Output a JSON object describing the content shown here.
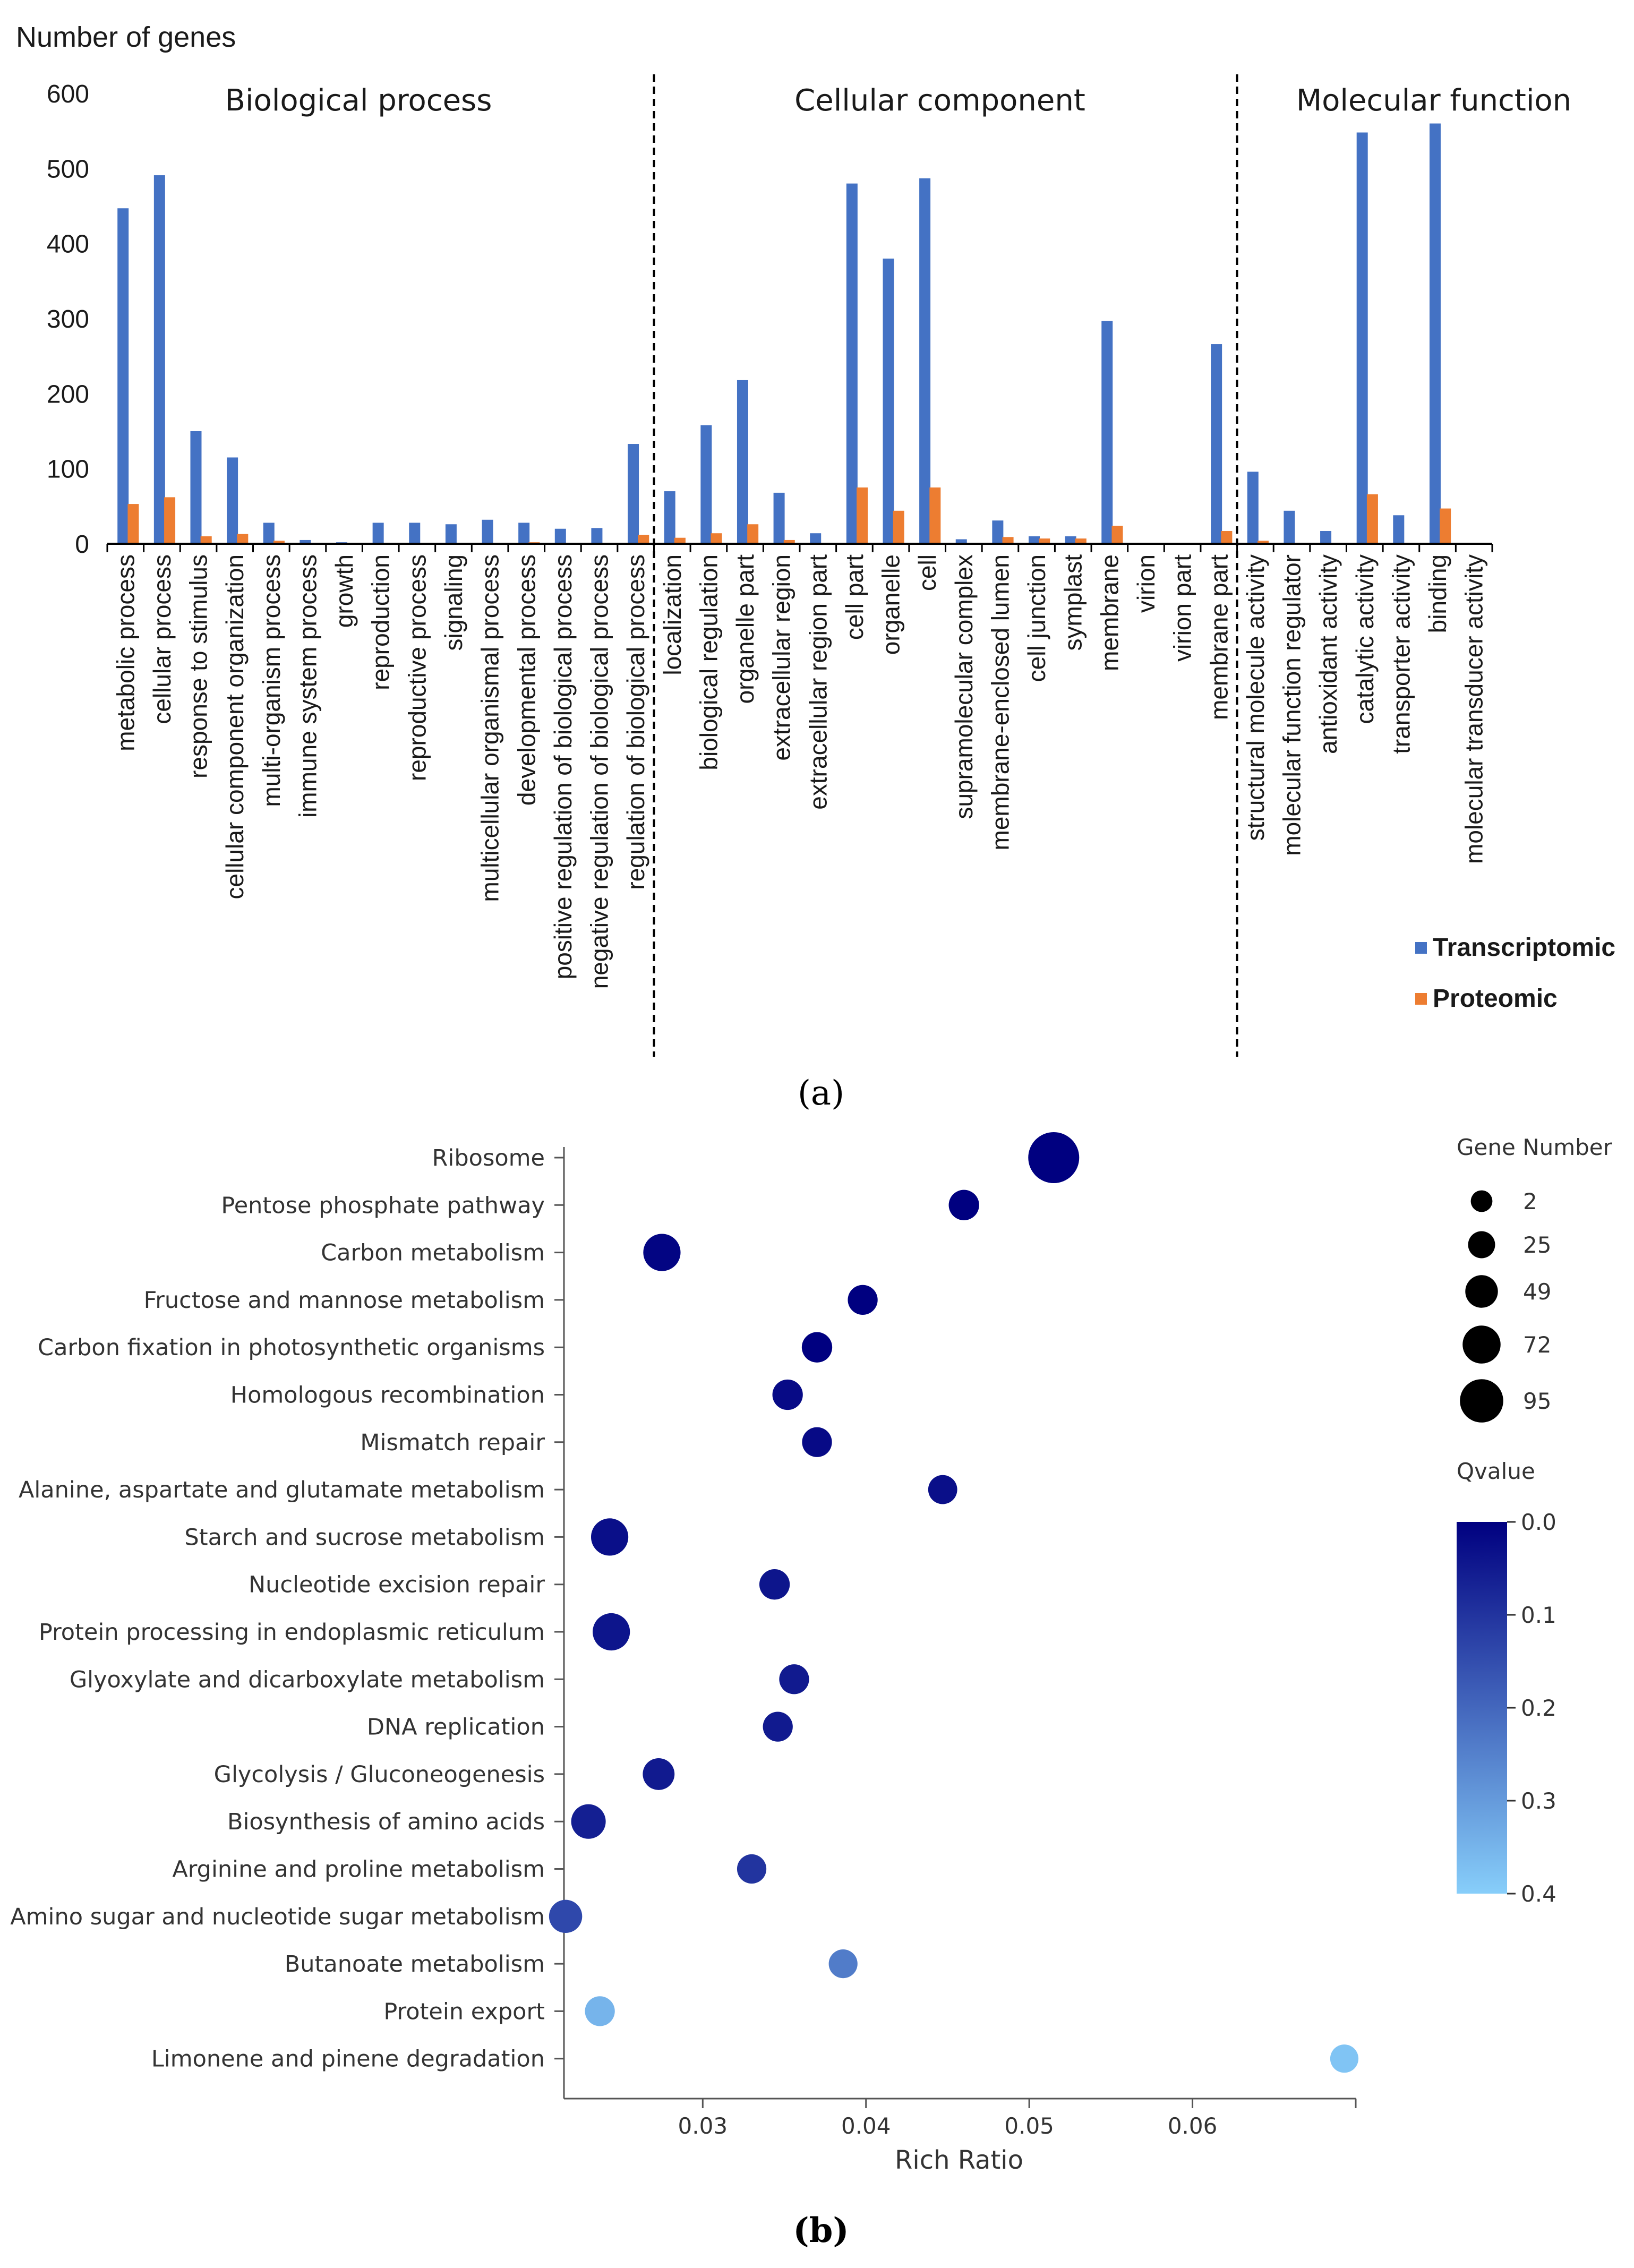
{
  "panel_a": {
    "caption": "(a)",
    "sections": [
      "Biological process",
      "Cellular component",
      "Molecular function"
    ],
    "colors": {
      "transcriptomic": "#4472C4",
      "proteomic": "#ED7D31"
    }
  },
  "panel_b": {
    "caption": "(b)",
    "size_legend_title": "Gene Number",
    "size_legend_values": [
      "2",
      "25",
      "49",
      "72",
      "95"
    ],
    "color_legend_title": "Qvalue",
    "color_legend_ticks": [
      "0.0",
      "0.1",
      "0.2",
      "0.3",
      "0.4"
    ],
    "color_scale": {
      "low": "#000080",
      "high": "#87CEFA"
    }
  },
  "chart_data": [
    {
      "type": "bar",
      "title": "",
      "ylabel": "Number of genes",
      "xlabel": "",
      "ylim": [
        0,
        600
      ],
      "yticks": [
        "0",
        "100",
        "200",
        "300",
        "400",
        "500",
        "600"
      ],
      "categories": [
        "metabolic process",
        "cellular process",
        "response to stimulus",
        "cellular component organization",
        "multi-organism process",
        "immune system process",
        "growth",
        "reproduction",
        "reproductive process",
        "signaling",
        "multicellular organismal process",
        "developmental process",
        "positive regulation of biological process",
        "negative regulation of biological process",
        "regulation of biological process",
        "localization",
        "biological regulation",
        "organelle part",
        "extracellular region",
        "extracellular region part",
        "cell part",
        "organelle",
        "cell",
        "supramolecular complex",
        "membrane-enclosed lumen",
        "cell junction",
        "symplast",
        "membrane",
        "virion",
        "virion part",
        "membrane part",
        "structural molecule activity",
        "molecular function regulator",
        "antioxidant activity",
        "catalytic activity",
        "transporter activity",
        "binding",
        "molecular transducer activity"
      ],
      "series": [
        {
          "name": "Transcriptomic",
          "values": [
            447,
            491,
            150,
            115,
            28,
            5,
            2,
            28,
            28,
            26,
            32,
            28,
            20,
            21,
            133,
            70,
            158,
            218,
            68,
            14,
            480,
            380,
            487,
            6,
            31,
            10,
            10,
            297,
            0,
            0,
            266,
            96,
            44,
            17,
            548,
            38,
            560,
            0
          ]
        },
        {
          "name": "Proteomic",
          "values": [
            53,
            62,
            10,
            13,
            4,
            0,
            0,
            0,
            0,
            0,
            0,
            2,
            0,
            0,
            12,
            8,
            14,
            26,
            5,
            0,
            75,
            44,
            75,
            0,
            9,
            7,
            7,
            24,
            0,
            0,
            17,
            4,
            0,
            0,
            66,
            0,
            47,
            0
          ]
        }
      ],
      "section_boundaries_after_index": [
        14,
        30
      ],
      "legend": [
        "Transcriptomic",
        "Proteomic"
      ]
    },
    {
      "type": "scatter",
      "title": "",
      "xlabel": "Rich Ratio",
      "ylabel": "",
      "xlim": [
        0.0215,
        0.07
      ],
      "xticks": [
        "0.03",
        "0.04",
        "0.05",
        "0.06"
      ],
      "categories": [
        "Ribosome",
        "Pentose phosphate pathway",
        "Carbon metabolism",
        "Fructose and mannose metabolism",
        "Carbon fixation in photosynthetic organisms",
        "Homologous recombination",
        "Mismatch repair",
        "Alanine, aspartate and glutamate metabolism",
        "Starch and sucrose metabolism",
        "Nucleotide excision repair",
        "Protein processing in endoplasmic reticulum",
        "Glyoxylate and dicarboxylate metabolism",
        "DNA replication",
        "Glycolysis / Gluconeogenesis",
        "Biosynthesis of amino acids",
        "Arginine and proline metabolism",
        "Amino sugar and nucleotide sugar metabolism",
        "Butanoate metabolism",
        "Protein export",
        "Limonene and pinene degradation"
      ],
      "points": [
        {
          "pathway": "Ribosome",
          "rich_ratio": 0.0515,
          "gene_number": 95,
          "qvalue": 0.0
        },
        {
          "pathway": "Pentose phosphate pathway",
          "rich_ratio": 0.046,
          "gene_number": 20,
          "qvalue": 0.0
        },
        {
          "pathway": "Carbon metabolism",
          "rich_ratio": 0.0275,
          "gene_number": 45,
          "qvalue": 0.01
        },
        {
          "pathway": "Fructose and mannose metabolism",
          "rich_ratio": 0.0398,
          "gene_number": 18,
          "qvalue": 0.0
        },
        {
          "pathway": "Carbon fixation in photosynthetic organisms",
          "rich_ratio": 0.037,
          "gene_number": 20,
          "qvalue": 0.0
        },
        {
          "pathway": "Homologous recombination",
          "rich_ratio": 0.0352,
          "gene_number": 20,
          "qvalue": 0.02
        },
        {
          "pathway": "Mismatch repair",
          "rich_ratio": 0.037,
          "gene_number": 18,
          "qvalue": 0.02
        },
        {
          "pathway": "Alanine, aspartate and glutamate metabolism",
          "rich_ratio": 0.0447,
          "gene_number": 15,
          "qvalue": 0.03
        },
        {
          "pathway": "Starch and sucrose metabolism",
          "rich_ratio": 0.0243,
          "gene_number": 45,
          "qvalue": 0.03
        },
        {
          "pathway": "Nucleotide excision repair",
          "rich_ratio": 0.0344,
          "gene_number": 20,
          "qvalue": 0.04
        },
        {
          "pathway": "Protein processing in endoplasmic reticulum",
          "rich_ratio": 0.0244,
          "gene_number": 45,
          "qvalue": 0.04
        },
        {
          "pathway": "Glyoxylate and dicarboxylate metabolism",
          "rich_ratio": 0.0356,
          "gene_number": 18,
          "qvalue": 0.05
        },
        {
          "pathway": "DNA replication",
          "rich_ratio": 0.0346,
          "gene_number": 18,
          "qvalue": 0.05
        },
        {
          "pathway": "Glycolysis / Gluconeogenesis",
          "rich_ratio": 0.0273,
          "gene_number": 25,
          "qvalue": 0.05
        },
        {
          "pathway": "Biosynthesis of amino acids",
          "rich_ratio": 0.023,
          "gene_number": 35,
          "qvalue": 0.06
        },
        {
          "pathway": "Arginine and proline metabolism",
          "rich_ratio": 0.033,
          "gene_number": 16,
          "qvalue": 0.1
        },
        {
          "pathway": "Amino sugar and nucleotide sugar metabolism",
          "rich_ratio": 0.0216,
          "gene_number": 30,
          "qvalue": 0.14
        },
        {
          "pathway": "Butanoate metabolism",
          "rich_ratio": 0.0386,
          "gene_number": 14,
          "qvalue": 0.24
        },
        {
          "pathway": "Protein export",
          "rich_ratio": 0.0237,
          "gene_number": 18,
          "qvalue": 0.35
        },
        {
          "pathway": "Limonene and pinene degradation",
          "rich_ratio": 0.0693,
          "gene_number": 12,
          "qvalue": 0.38
        }
      ],
      "legend": [
        "Gene Number",
        "Qvalue"
      ]
    }
  ]
}
